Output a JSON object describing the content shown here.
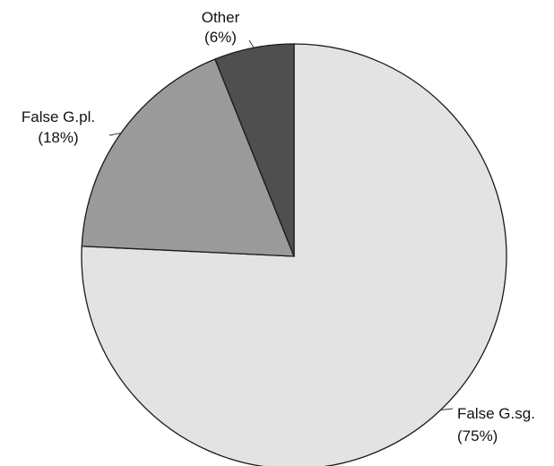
{
  "chart_data": {
    "type": "pie",
    "start_angle": "12 o'clock, clockwise",
    "slices": [
      {
        "name": "False G.sg.",
        "pct_label": "(75%)",
        "value": 75,
        "color": "#e3e3e3"
      },
      {
        "name": "False G.pl.",
        "pct_label": "(18%)",
        "value": 18,
        "color": "#9a9a9a"
      },
      {
        "name": "Other",
        "pct_label": "(6%)",
        "value": 6,
        "color": "#4f4f4f"
      }
    ],
    "stroke_color": "#1a1a1a"
  }
}
